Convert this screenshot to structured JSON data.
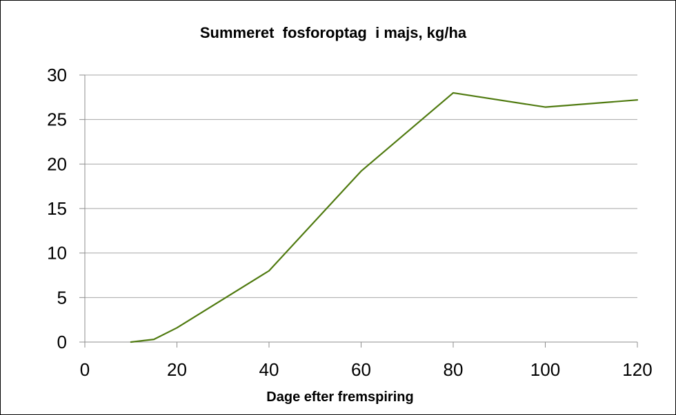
{
  "chart_data": {
    "type": "line",
    "title": "Summeret  fosforoptag  i majs, kg/ha",
    "xlabel": "Dage efter fremspiring",
    "ylabel": "",
    "xlim": [
      0,
      120
    ],
    "ylim": [
      0,
      30
    ],
    "xticks": [
      0,
      20,
      40,
      60,
      80,
      100,
      120
    ],
    "yticks": [
      0,
      5,
      10,
      15,
      20,
      25,
      30
    ],
    "grid": true,
    "legend": "none",
    "series": [
      {
        "color": "#4f7a0f",
        "x": [
          10,
          15,
          20,
          40,
          60,
          80,
          100,
          120
        ],
        "y": [
          0,
          0.3,
          1.6,
          8.0,
          19.2,
          28.0,
          26.4,
          27.2
        ]
      }
    ]
  }
}
